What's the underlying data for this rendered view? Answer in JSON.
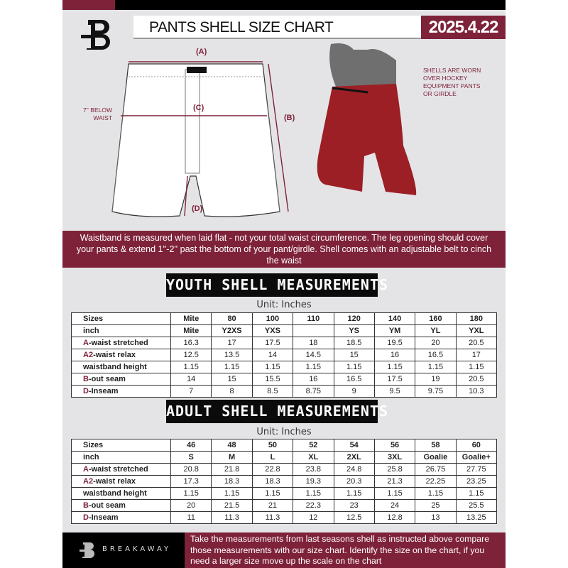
{
  "header": {
    "title": "PANTS SHELL SIZE CHART",
    "date": "2025.4.22",
    "logo": "B"
  },
  "diagram": {
    "label_a": "(A)",
    "label_b": "(B)",
    "label_c": "(C)",
    "label_d": "(D)",
    "below_waist": "7'' BELOW WAIST",
    "worn_note": "SHELLS ARE WORN OVER HOCKEY EQUIPMENT PANTS OR GIRDLE"
  },
  "instructions": "Waistband is measured when laid flat - not your total waist circumference. The leg opening should cover your pants & extend 1''-2'' past the bottom of your pant/girdle. Shell comes with an adjustable belt to cinch the waist",
  "youth": {
    "title": "YOUTH SHELL MEASUREMENTS",
    "unit": "Unit: Inches",
    "rows": [
      {
        "prefix": "",
        "label": "Sizes",
        "values": [
          "Mite",
          "80",
          "100",
          "110",
          "120",
          "140",
          "160",
          "180"
        ]
      },
      {
        "prefix": "",
        "label": "inch",
        "values": [
          "Mite",
          "Y2XS",
          "YXS",
          "",
          "YS",
          "YM",
          "YL",
          "YXL"
        ]
      },
      {
        "prefix": "A",
        "label": "-waist stretched",
        "values": [
          "16.3",
          "17",
          "17.5",
          "18",
          "18.5",
          "19.5",
          "20",
          "20.5"
        ]
      },
      {
        "prefix": "A2",
        "label": "-waist relax",
        "values": [
          "12.5",
          "13.5",
          "14",
          "14.5",
          "15",
          "16",
          "16.5",
          "17"
        ]
      },
      {
        "prefix": "",
        "label": "waistband height",
        "values": [
          "1.15",
          "1.15",
          "1.15",
          "1.15",
          "1.15",
          "1.15",
          "1.15",
          "1.15"
        ]
      },
      {
        "prefix": "B",
        "label": "-out seam",
        "values": [
          "14",
          "15",
          "15.5",
          "16",
          "16.5",
          "17.5",
          "19",
          "20.5"
        ]
      },
      {
        "prefix": "D",
        "label": "-Inseam",
        "values": [
          "7",
          "8",
          "8.5",
          "8.75",
          "9",
          "9.5",
          "9.75",
          "10.3"
        ]
      }
    ]
  },
  "adult": {
    "title": "ADULT SHELL MEASUREMENTS",
    "unit": "Unit: Inches",
    "rows": [
      {
        "prefix": "",
        "label": "Sizes",
        "values": [
          "46",
          "48",
          "50",
          "52",
          "54",
          "56",
          "58",
          "60"
        ]
      },
      {
        "prefix": "",
        "label": "inch",
        "values": [
          "S",
          "M",
          "L",
          "XL",
          "2XL",
          "3XL",
          "Goalie",
          "Goalie+"
        ]
      },
      {
        "prefix": "A",
        "label": "-waist stretched",
        "values": [
          "20.8",
          "21.8",
          "22.8",
          "23.8",
          "24.8",
          "25.8",
          "26.75",
          "27.75"
        ]
      },
      {
        "prefix": "A2",
        "label": "-waist relax",
        "values": [
          "17.3",
          "18.3",
          "18.3",
          "19.3",
          "20.3",
          "21.3",
          "22.25",
          "23.25"
        ]
      },
      {
        "prefix": "",
        "label": "waistband height",
        "values": [
          "1.15",
          "1.15",
          "1.15",
          "1.15",
          "1.15",
          "1.15",
          "1.15",
          "1.15"
        ]
      },
      {
        "prefix": "B",
        "label": "-out seam",
        "values": [
          "20",
          "21.5",
          "21",
          "22.3",
          "23",
          "24",
          "25",
          "25.5"
        ]
      },
      {
        "prefix": "D",
        "label": "-Inseam",
        "values": [
          "11",
          "11.3",
          "11.3",
          "12",
          "12.5",
          "12.8",
          "13",
          "13.25"
        ]
      }
    ]
  },
  "footer": {
    "brand": "BREAKAWAY",
    "text": "Take the measurements from last seasons shell as instructed above compare those measurements  with our size chart. Identify the size on the chart, if you need a larger size move up the scale on the chart"
  },
  "colors": {
    "accent": "#7e2239",
    "background": "#e4e4e7"
  }
}
